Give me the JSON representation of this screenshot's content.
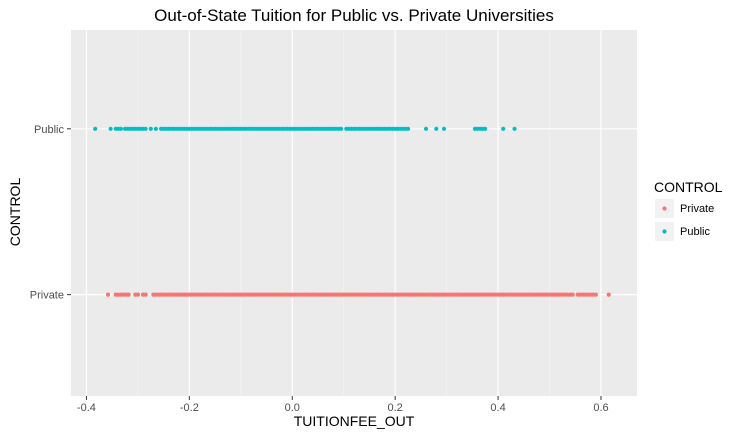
{
  "chart_data": {
    "type": "scatter",
    "title": "Out-of-State Tuition for Public vs. Private Universities",
    "xlabel": "TUITIONFEE_OUT",
    "ylabel": "CONTROL",
    "xlim": [
      -0.43,
      0.67
    ],
    "x_ticks": [
      "-0.4",
      "-0.2",
      "0.0",
      "0.2",
      "0.4",
      "0.6"
    ],
    "x_tick_values": [
      -0.4,
      -0.2,
      0.0,
      0.2,
      0.4,
      0.6
    ],
    "categories": [
      "Private",
      "Public"
    ],
    "grid": true,
    "legend": {
      "title": "CONTROL",
      "position": "right"
    },
    "series": [
      {
        "name": "Private",
        "category": "Private",
        "color": "#F8766D",
        "x": [
          -0.358,
          -0.343,
          -0.338,
          -0.333,
          -0.328,
          -0.323,
          -0.318,
          -0.305,
          -0.3,
          -0.29,
          -0.285,
          -0.27,
          -0.265,
          -0.26,
          -0.255,
          -0.25,
          -0.245,
          -0.24,
          -0.235,
          -0.23,
          -0.225,
          -0.22,
          -0.215,
          -0.21,
          -0.205,
          -0.2,
          -0.195,
          -0.19,
          -0.185,
          -0.18,
          -0.175,
          -0.17,
          -0.165,
          -0.16,
          -0.155,
          -0.15,
          -0.145,
          -0.14,
          -0.135,
          -0.13,
          -0.125,
          -0.12,
          -0.115,
          -0.11,
          -0.105,
          -0.1,
          -0.095,
          -0.09,
          -0.085,
          -0.08,
          -0.075,
          -0.07,
          -0.065,
          -0.06,
          -0.055,
          -0.05,
          -0.045,
          -0.04,
          -0.035,
          -0.03,
          -0.025,
          -0.02,
          -0.015,
          -0.01,
          -0.005,
          0.0,
          0.005,
          0.01,
          0.015,
          0.02,
          0.025,
          0.03,
          0.035,
          0.04,
          0.045,
          0.05,
          0.055,
          0.06,
          0.065,
          0.07,
          0.075,
          0.08,
          0.085,
          0.09,
          0.095,
          0.1,
          0.105,
          0.11,
          0.115,
          0.12,
          0.125,
          0.13,
          0.135,
          0.14,
          0.145,
          0.15,
          0.155,
          0.16,
          0.165,
          0.17,
          0.175,
          0.18,
          0.185,
          0.19,
          0.195,
          0.2,
          0.205,
          0.21,
          0.215,
          0.22,
          0.225,
          0.23,
          0.235,
          0.24,
          0.245,
          0.25,
          0.255,
          0.26,
          0.265,
          0.27,
          0.275,
          0.28,
          0.285,
          0.29,
          0.295,
          0.3,
          0.305,
          0.31,
          0.315,
          0.32,
          0.325,
          0.33,
          0.335,
          0.34,
          0.345,
          0.35,
          0.355,
          0.36,
          0.365,
          0.37,
          0.375,
          0.38,
          0.385,
          0.39,
          0.395,
          0.4,
          0.405,
          0.41,
          0.415,
          0.42,
          0.425,
          0.43,
          0.435,
          0.44,
          0.445,
          0.45,
          0.455,
          0.46,
          0.465,
          0.47,
          0.475,
          0.48,
          0.485,
          0.49,
          0.495,
          0.5,
          0.505,
          0.51,
          0.515,
          0.52,
          0.525,
          0.53,
          0.535,
          0.54,
          0.545,
          0.555,
          0.56,
          0.565,
          0.57,
          0.575,
          0.58,
          0.585,
          0.59,
          0.615
        ]
      },
      {
        "name": "Public",
        "category": "Public",
        "color": "#00BFC4",
        "x": [
          -0.383,
          -0.353,
          -0.343,
          -0.338,
          -0.333,
          -0.325,
          -0.32,
          -0.315,
          -0.31,
          -0.305,
          -0.3,
          -0.295,
          -0.29,
          -0.285,
          -0.275,
          -0.265,
          -0.255,
          -0.25,
          -0.245,
          -0.24,
          -0.235,
          -0.23,
          -0.225,
          -0.22,
          -0.215,
          -0.21,
          -0.205,
          -0.2,
          -0.195,
          -0.19,
          -0.185,
          -0.18,
          -0.175,
          -0.17,
          -0.165,
          -0.16,
          -0.155,
          -0.15,
          -0.145,
          -0.14,
          -0.135,
          -0.13,
          -0.125,
          -0.12,
          -0.115,
          -0.11,
          -0.105,
          -0.1,
          -0.095,
          -0.09,
          -0.085,
          -0.08,
          -0.075,
          -0.07,
          -0.065,
          -0.06,
          -0.055,
          -0.05,
          -0.045,
          -0.04,
          -0.035,
          -0.03,
          -0.025,
          -0.02,
          -0.015,
          -0.01,
          -0.005,
          0.0,
          0.005,
          0.01,
          0.015,
          0.02,
          0.025,
          0.03,
          0.035,
          0.04,
          0.045,
          0.05,
          0.055,
          0.06,
          0.065,
          0.07,
          0.075,
          0.08,
          0.085,
          0.09,
          0.095,
          0.105,
          0.11,
          0.115,
          0.12,
          0.125,
          0.13,
          0.135,
          0.14,
          0.145,
          0.15,
          0.155,
          0.16,
          0.165,
          0.17,
          0.175,
          0.18,
          0.185,
          0.19,
          0.195,
          0.2,
          0.205,
          0.21,
          0.215,
          0.22,
          0.225,
          0.26,
          0.28,
          0.295,
          0.355,
          0.36,
          0.365,
          0.37,
          0.375,
          0.41,
          0.432
        ]
      }
    ]
  }
}
